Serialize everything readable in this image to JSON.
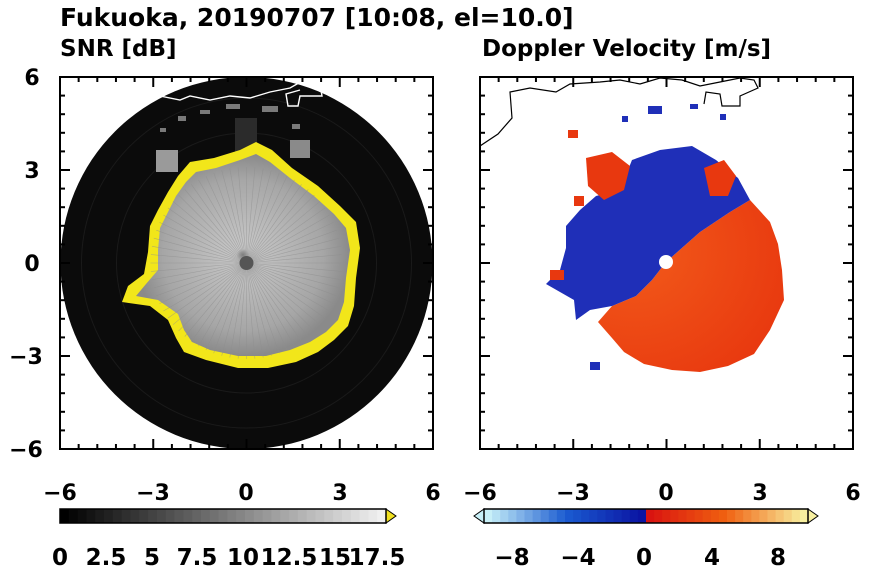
{
  "figure": {
    "title": "Fukuoka, 20190707 [10:08, el=10.0]"
  },
  "chart_data": [
    {
      "type": "heatmap",
      "title": "SNR [dB]",
      "xlim": [
        -6,
        6
      ],
      "ylim": [
        -6,
        6
      ],
      "x_ticks": [
        "−6",
        "−3",
        "0",
        "3",
        "6"
      ],
      "y_ticks": [
        "6",
        "3",
        "0",
        "−3",
        "−6"
      ],
      "colorbar": {
        "ticks": [
          "0",
          "2.5",
          "5",
          "7.5",
          "10",
          "12.5",
          "15",
          "17.5"
        ],
        "min": 0,
        "max": 18.5,
        "steps": 37,
        "colors": {
          "low": "#000000",
          "high": "#f0f0f0",
          "over": "#f0e020"
        }
      },
      "field": {
        "domain_radius_km": 6,
        "echo_radius_km": 3.4,
        "outer_color": "#0b0b0b",
        "inner_color": "#a8a8a8",
        "edge_color": "#f2e61a"
      }
    },
    {
      "type": "heatmap",
      "title": "Doppler Velocity [m/s]",
      "xlim": [
        -6,
        6
      ],
      "ylim": [
        -6,
        6
      ],
      "x_ticks": [
        "−6",
        "−3",
        "0",
        "3",
        "6"
      ],
      "y_ticks": [],
      "colorbar": {
        "ticks": [
          "−8",
          "−4",
          "0",
          "4",
          "8"
        ],
        "min": -10,
        "max": 10,
        "steps": 40,
        "colors": {
          "neg_far": "#c8f0f8",
          "neg_mid": "#1a5ad0",
          "neg_near": "#0a10a0",
          "pos_near": "#d81010",
          "pos_mid": "#f06010",
          "pos_far": "#f8f0a0"
        }
      },
      "field": {
        "echo_radius_km": 3.4,
        "approaching_color": "#1f2fb8",
        "receding_color": "#f04a18"
      }
    }
  ]
}
